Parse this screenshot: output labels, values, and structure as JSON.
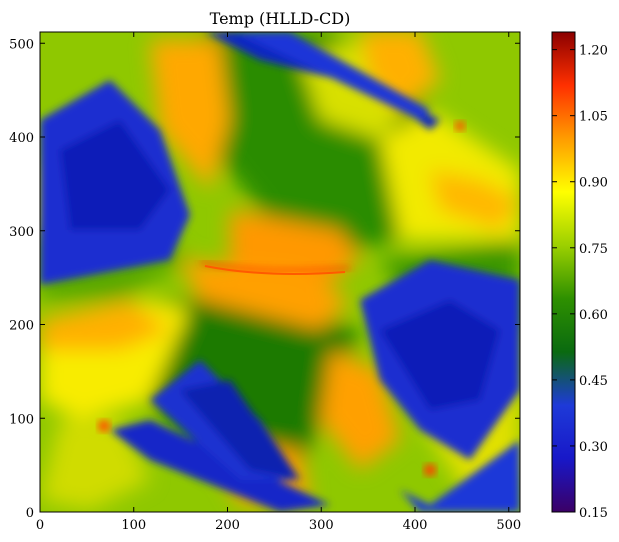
{
  "chart_data": {
    "type": "heatmap",
    "title": "Temp (HLLD-CD)",
    "xlabel": "",
    "ylabel": "",
    "xlim": [
      0,
      512
    ],
    "ylim": [
      0,
      512
    ],
    "x_ticks": [
      0,
      100,
      200,
      300,
      400,
      500
    ],
    "y_ticks": [
      0,
      100,
      200,
      300,
      400,
      500
    ],
    "colorbar": {
      "range": [
        0.15,
        1.24
      ],
      "ticks": [
        "0.15",
        "0.30",
        "0.45",
        "0.60",
        "0.75",
        "0.90",
        "1.05",
        "1.20"
      ],
      "colormap": [
        "#3b0066",
        "#1818c8",
        "#1e3ad8",
        "#0a6a10",
        "#2e9000",
        "#9cd000",
        "#ffff00",
        "#ff9c00",
        "#ff3000",
        "#8b0000"
      ]
    },
    "field_description_regions": [
      {
        "label": "band",
        "value": 0.35
      },
      {
        "label": "band",
        "value": 0.6
      },
      {
        "label": "band",
        "value": 0.8
      },
      {
        "label": "band",
        "value": 0.95
      }
    ]
  }
}
